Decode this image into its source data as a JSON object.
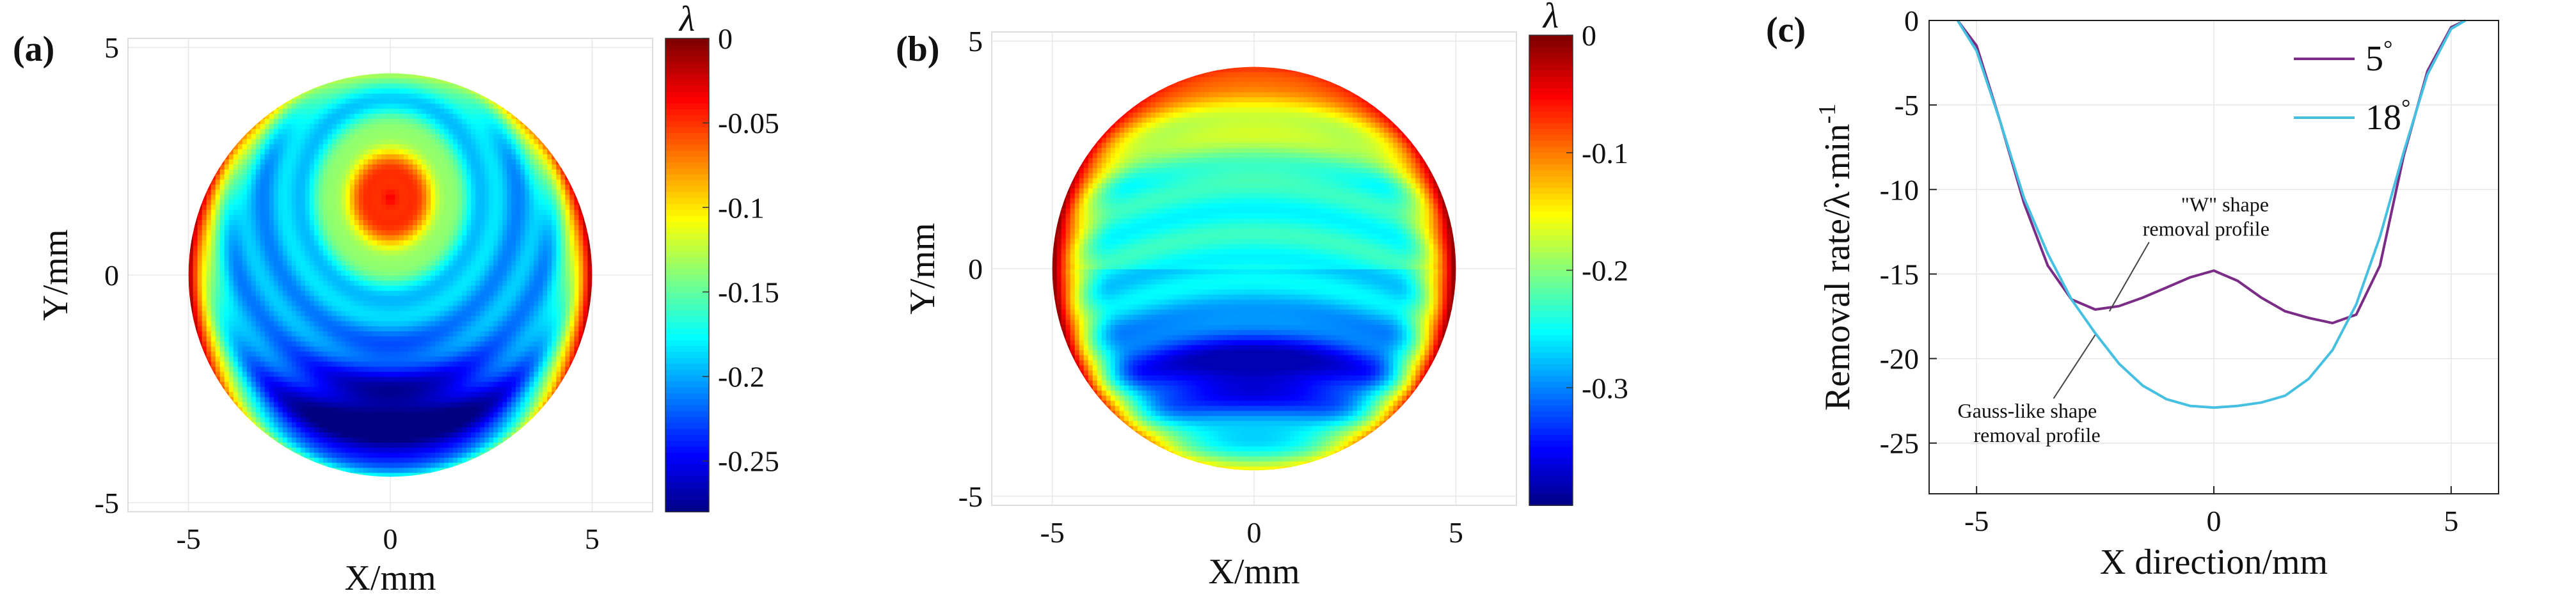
{
  "chart_data": [
    {
      "type": "heatmap",
      "panel_label": "(a)",
      "xlabel": "X/mm",
      "ylabel": "Y/mm",
      "xlim": [
        -6.5,
        6.5
      ],
      "ylim": [
        -5.2,
        5.2
      ],
      "xticks": [
        -5,
        0,
        5
      ],
      "yticks": [
        -5,
        0,
        5
      ],
      "aperture_radius_mm": 5,
      "colorbar": {
        "label": "λ",
        "range": [
          -0.28,
          0
        ],
        "ticks": [
          0,
          -0.05,
          -0.1,
          -0.15,
          -0.2,
          -0.25
        ]
      },
      "field": {
        "peak_center": [
          0.0,
          1.7
        ],
        "peak_value": -0.03,
        "trough_y": -3.2,
        "trough_value": -0.27
      }
    },
    {
      "type": "heatmap",
      "panel_label": "(b)",
      "xlabel": "X/mm",
      "ylabel": "Y/mm",
      "xlim": [
        -6.5,
        6.5
      ],
      "ylim": [
        -5.2,
        5.2
      ],
      "xticks": [
        -5,
        0,
        5
      ],
      "yticks": [
        -5,
        0,
        5
      ],
      "aperture_radius_mm": 5,
      "colorbar": {
        "label": "λ",
        "range": [
          -0.4,
          0
        ],
        "ticks": [
          0,
          -0.1,
          -0.2,
          -0.3
        ]
      },
      "field": {
        "top_value": -0.05,
        "trough_y": -2.2,
        "trough_value": -0.38
      }
    },
    {
      "type": "line",
      "panel_label": "(c)",
      "xlabel": "X direction/mm",
      "ylabel": "Removal rate/λ·min",
      "ylabel_superscript": "-1",
      "xlim": [
        -6,
        6
      ],
      "ylim": [
        -28,
        0
      ],
      "xticks": [
        -5,
        0,
        5
      ],
      "yticks": [
        0,
        -5,
        -10,
        -15,
        -20,
        -25
      ],
      "legend_position": "top-right",
      "series": [
        {
          "name": "5",
          "name_suffix": "°",
          "color": "#7a2c86",
          "x": [
            -5.4,
            -5.0,
            -4.5,
            -4.0,
            -3.5,
            -3.0,
            -2.5,
            -2.0,
            -1.5,
            -1.0,
            -0.5,
            0.0,
            0.5,
            1.0,
            1.5,
            2.0,
            2.5,
            3.0,
            3.5,
            4.0,
            4.5,
            5.0,
            5.3
          ],
          "y": [
            0,
            -1.5,
            -6.0,
            -10.8,
            -14.5,
            -16.5,
            -17.1,
            -16.9,
            -16.4,
            -15.8,
            -15.2,
            -14.8,
            -15.4,
            -16.4,
            -17.2,
            -17.6,
            -17.9,
            -17.4,
            -14.5,
            -8.0,
            -3.0,
            -0.4,
            0
          ]
        },
        {
          "name": "18",
          "name_suffix": "°",
          "color": "#45c0e0",
          "x": [
            -5.4,
            -5.0,
            -4.5,
            -4.0,
            -3.5,
            -3.0,
            -2.5,
            -2.0,
            -1.5,
            -1.0,
            -0.5,
            0.0,
            0.5,
            1.0,
            1.5,
            2.0,
            2.5,
            3.0,
            3.5,
            4.0,
            4.5,
            5.0,
            5.3
          ],
          "y": [
            0,
            -1.8,
            -6.0,
            -10.5,
            -13.8,
            -16.5,
            -18.5,
            -20.3,
            -21.6,
            -22.4,
            -22.8,
            -22.9,
            -22.8,
            -22.6,
            -22.2,
            -21.2,
            -19.5,
            -16.8,
            -12.8,
            -7.8,
            -3.2,
            -0.5,
            0
          ]
        }
      ],
      "annotations": [
        {
          "lines": [
            "\"W\" shape",
            "removal profile"
          ],
          "at": [
            -2.2,
            -17.2
          ]
        },
        {
          "lines": [
            "Gauss-like shape",
            "removal profile"
          ],
          "at": [
            -2.5,
            -18.6
          ]
        }
      ]
    }
  ]
}
